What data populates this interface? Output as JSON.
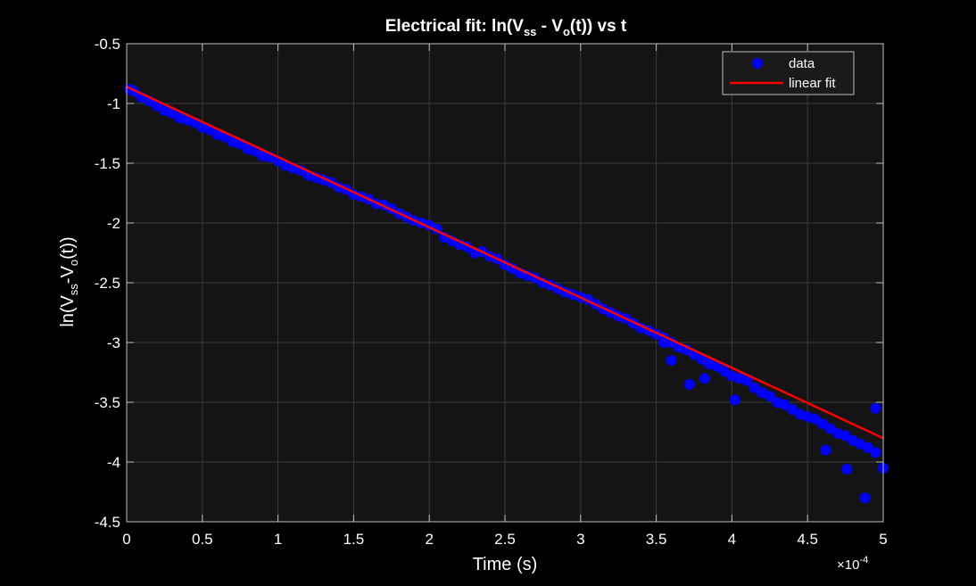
{
  "chart_data": {
    "type": "scatter",
    "title": {
      "prefix": "Electrical  fit:  ln(V",
      "sub1": "ss",
      "mid": "  -  V",
      "sub2": "o",
      "suffix": "(t))  vs  t"
    },
    "xlabel": "Time (s)",
    "ylabel": {
      "prefix": "ln(V",
      "sub1": "ss",
      "mid": "-V",
      "sub2": "o",
      "suffix": "(t))"
    },
    "x_exponent": {
      "base": "×10",
      "exp": "-4"
    },
    "xlim": [
      0,
      5
    ],
    "ylim": [
      -4.5,
      -0.5
    ],
    "x_ticks": [
      0,
      0.5,
      1,
      1.5,
      2,
      2.5,
      3,
      3.5,
      4,
      4.5,
      5
    ],
    "x_tick_labels": [
      "0",
      "0.5",
      "1",
      "1.5",
      "2",
      "2.5",
      "3",
      "3.5",
      "4",
      "4.5",
      "5"
    ],
    "y_ticks": [
      -0.5,
      -1,
      -1.5,
      -2,
      -2.5,
      -3,
      -3.5,
      -4,
      -4.5
    ],
    "y_tick_labels": [
      "-0.5",
      "-1",
      "-1.5",
      "-2",
      "-2.5",
      "-3",
      "-3.5",
      "-4",
      "-4.5"
    ],
    "grid": true,
    "legend": {
      "position": "top-right",
      "entries": [
        "data",
        "linear fit"
      ]
    },
    "series": [
      {
        "name": "data",
        "kind": "scatter",
        "color": "#0000ff",
        "x": [
          0.02,
          0.05,
          0.1,
          0.15,
          0.2,
          0.25,
          0.3,
          0.35,
          0.4,
          0.45,
          0.5,
          0.55,
          0.6,
          0.65,
          0.7,
          0.75,
          0.8,
          0.85,
          0.9,
          0.95,
          1.0,
          1.05,
          1.1,
          1.15,
          1.2,
          1.25,
          1.3,
          1.35,
          1.4,
          1.45,
          1.5,
          1.55,
          1.6,
          1.65,
          1.7,
          1.75,
          1.8,
          1.85,
          1.9,
          1.95,
          2.0,
          2.05,
          2.1,
          2.15,
          2.2,
          2.25,
          2.3,
          2.35,
          2.4,
          2.45,
          2.5,
          2.55,
          2.6,
          2.65,
          2.7,
          2.75,
          2.8,
          2.85,
          2.9,
          2.95,
          3.0,
          3.05,
          3.1,
          3.15,
          3.2,
          3.25,
          3.3,
          3.35,
          3.4,
          3.45,
          3.5,
          3.55,
          3.6,
          3.65,
          3.7,
          3.75,
          3.8,
          3.85,
          3.9,
          3.95,
          4.0,
          4.05,
          4.1,
          4.15,
          4.2,
          4.25,
          4.3,
          4.35,
          4.4,
          4.45,
          4.5,
          4.55,
          4.6,
          4.65,
          4.7,
          4.75,
          4.8,
          4.85,
          4.9,
          4.95,
          5.0,
          3.82,
          3.6,
          3.72,
          3.55,
          4.02,
          4.88,
          4.62,
          4.95,
          4.76
        ],
        "y": [
          -0.88,
          -0.9,
          -0.95,
          -0.98,
          -1.02,
          -1.06,
          -1.08,
          -1.12,
          -1.14,
          -1.16,
          -1.2,
          -1.22,
          -1.26,
          -1.28,
          -1.32,
          -1.34,
          -1.38,
          -1.4,
          -1.44,
          -1.45,
          -1.48,
          -1.52,
          -1.54,
          -1.56,
          -1.6,
          -1.62,
          -1.64,
          -1.66,
          -1.7,
          -1.72,
          -1.76,
          -1.78,
          -1.8,
          -1.84,
          -1.85,
          -1.88,
          -1.92,
          -1.95,
          -1.98,
          -2.0,
          -2.02,
          -2.05,
          -2.12,
          -2.15,
          -2.18,
          -2.2,
          -2.25,
          -2.24,
          -2.28,
          -2.3,
          -2.35,
          -2.38,
          -2.42,
          -2.44,
          -2.46,
          -2.5,
          -2.52,
          -2.55,
          -2.58,
          -2.6,
          -2.62,
          -2.64,
          -2.68,
          -2.72,
          -2.75,
          -2.78,
          -2.8,
          -2.84,
          -2.88,
          -2.9,
          -2.93,
          -2.96,
          -3.0,
          -3.04,
          -3.06,
          -3.1,
          -3.14,
          -3.18,
          -3.2,
          -3.24,
          -3.28,
          -3.3,
          -3.32,
          -3.38,
          -3.42,
          -3.45,
          -3.5,
          -3.52,
          -3.56,
          -3.6,
          -3.62,
          -3.64,
          -3.68,
          -3.72,
          -3.76,
          -3.78,
          -3.82,
          -3.85,
          -3.88,
          -3.92,
          -4.05,
          -3.3,
          -3.15,
          -3.35,
          -3.0,
          -3.48,
          -4.3,
          -3.9,
          -3.55,
          -4.06
        ]
      },
      {
        "name": "linear fit",
        "kind": "line",
        "color": "#ff0000",
        "x": [
          0,
          5
        ],
        "y": [
          -0.86,
          -3.8
        ]
      }
    ]
  }
}
